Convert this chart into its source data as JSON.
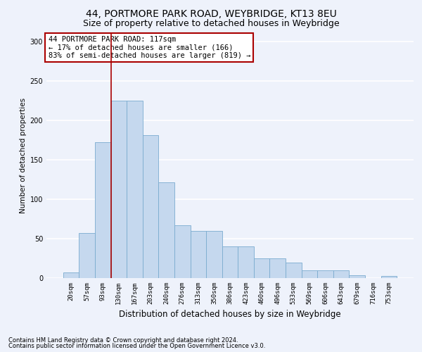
{
  "title1": "44, PORTMORE PARK ROAD, WEYBRIDGE, KT13 8EU",
  "title2": "Size of property relative to detached houses in Weybridge",
  "xlabel": "Distribution of detached houses by size in Weybridge",
  "ylabel": "Number of detached properties",
  "categories": [
    "20sqm",
    "57sqm",
    "93sqm",
    "130sqm",
    "167sqm",
    "203sqm",
    "240sqm",
    "276sqm",
    "313sqm",
    "350sqm",
    "386sqm",
    "423sqm",
    "460sqm",
    "496sqm",
    "533sqm",
    "569sqm",
    "606sqm",
    "643sqm",
    "679sqm",
    "716sqm",
    "753sqm"
  ],
  "values": [
    7,
    57,
    172,
    225,
    225,
    181,
    121,
    67,
    60,
    60,
    40,
    40,
    25,
    25,
    20,
    10,
    10,
    10,
    4,
    0,
    3
  ],
  "bar_color": "#c5d8ee",
  "bar_edge_color": "#7aabcf",
  "vline_x_index": 3,
  "vline_color": "#aa0000",
  "annotation_text": "44 PORTMORE PARK ROAD: 117sqm\n← 17% of detached houses are smaller (166)\n83% of semi-detached houses are larger (819) →",
  "annotation_box_color": "#ffffff",
  "annotation_box_edge_color": "#aa0000",
  "ylim": [
    0,
    310
  ],
  "yticks": [
    0,
    50,
    100,
    150,
    200,
    250,
    300
  ],
  "footnote1": "Contains HM Land Registry data © Crown copyright and database right 2024.",
  "footnote2": "Contains public sector information licensed under the Open Government Licence v3.0.",
  "bg_color": "#eef2fb",
  "plot_bg_color": "#eef2fb",
  "grid_color": "#ffffff",
  "title1_fontsize": 10,
  "title2_fontsize": 9,
  "annot_fontsize": 7.5,
  "xlabel_fontsize": 8.5,
  "ylabel_fontsize": 7.5,
  "tick_fontsize": 6.5,
  "footnote_fontsize": 6
}
